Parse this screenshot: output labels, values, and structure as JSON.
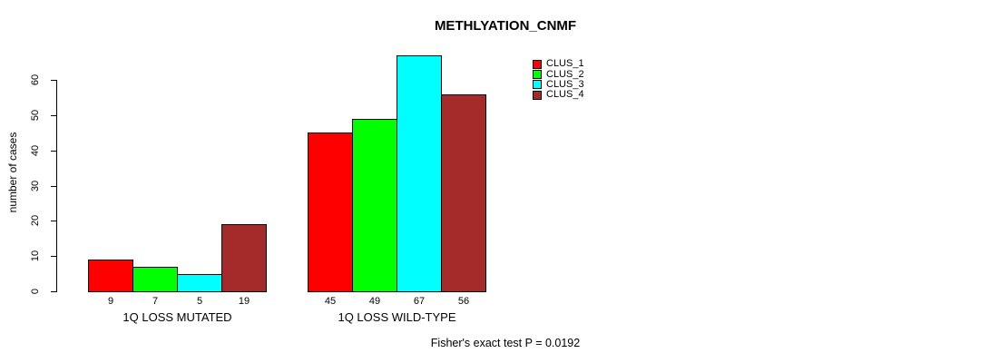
{
  "chart_data": {
    "type": "bar",
    "title": "METHLYATION_CNMF",
    "ylabel": "number of cases",
    "xlabel": "",
    "categories": [
      "1Q LOSS MUTATED",
      "1Q LOSS WILD-TYPE"
    ],
    "series": [
      {
        "name": "CLUS_1",
        "color": "#FF0000",
        "values": [
          9,
          45
        ]
      },
      {
        "name": "CLUS_2",
        "color": "#00FF00",
        "values": [
          7,
          49
        ]
      },
      {
        "name": "CLUS_3",
        "color": "#00FFFF",
        "values": [
          5,
          67
        ]
      },
      {
        "name": "CLUS_4",
        "color": "#A52A2A",
        "values": [
          19,
          56
        ]
      }
    ],
    "bar_value_labels": [
      [
        9,
        7,
        5,
        19
      ],
      [
        45,
        49,
        67,
        56
      ]
    ],
    "yticks": [
      0,
      10,
      20,
      30,
      40,
      50,
      60
    ],
    "ylim": [
      0,
      67
    ],
    "grid": false,
    "legend_position": "top-right",
    "legend_entries": [
      "CLUS_1",
      "CLUS_2",
      "CLUS_3",
      "CLUS_4"
    ],
    "annotation": "Fisher's exact test P = 0.0192",
    "colors": {
      "axis": "#000000",
      "background": "#FFFFFF",
      "bar_border": "#000000"
    }
  }
}
